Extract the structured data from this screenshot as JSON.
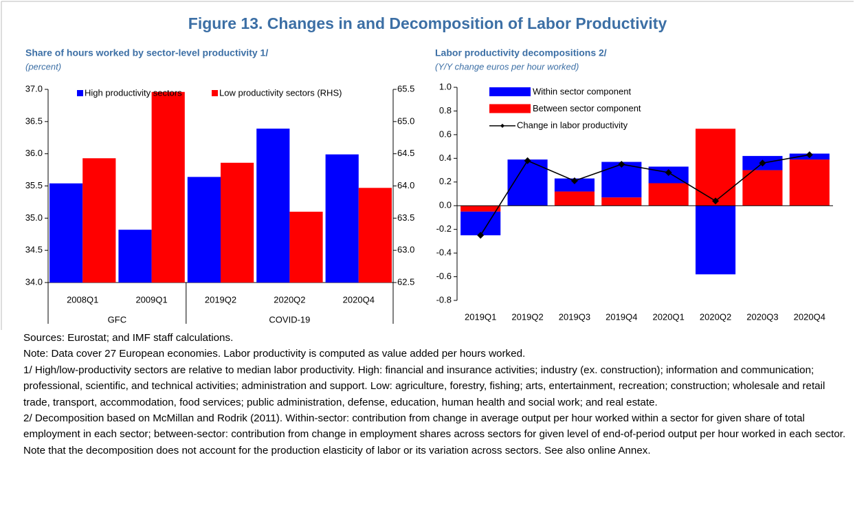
{
  "title": "Figure 13. Changes in and Decomposition of Labor Productivity",
  "chart_data": [
    {
      "type": "bar",
      "title": "Share of hours worked by sector-level productivity 1/",
      "subtitle": "(percent)",
      "categories": [
        "2008Q1",
        "2009Q1",
        "2019Q2",
        "2020Q2",
        "2020Q4"
      ],
      "groups": [
        {
          "label": "GFC",
          "size": 2
        },
        {
          "label": "COVID-19",
          "size": 3
        }
      ],
      "series": [
        {
          "name": "High productivity sectors",
          "color": "#0000ff",
          "values": [
            35.54,
            34.82,
            35.64,
            36.39,
            35.99
          ]
        },
        {
          "name": "Low productivity sectors (RHS)",
          "color": "#ff0000",
          "axis": "y2",
          "values": [
            64.43,
            65.46,
            64.36,
            63.6,
            63.97
          ]
        }
      ],
      "ylim": [
        34,
        37
      ],
      "yticks": [
        {
          "value": 34,
          "label": "34.0"
        },
        34.5,
        {
          "value": 35,
          "label": "35.0"
        },
        35.5,
        {
          "value": 36,
          "label": "36.0"
        },
        36.5,
        {
          "value": 37,
          "label": "37.0"
        }
      ],
      "y2lim": [
        62.5,
        65.5
      ],
      "y2ticks": [
        62.5,
        {
          "value": 63,
          "label": "63.0"
        },
        63.5,
        {
          "value": 64,
          "label": "64.0"
        },
        64.5,
        {
          "value": 65,
          "label": "65.0"
        },
        65.5
      ],
      "legend": "top"
    },
    {
      "type": "stacked_bar",
      "title": "Labor productivity decompositions 2/",
      "subtitle": "(Y/Y change euros per hour worked)",
      "categories": [
        "2019Q1",
        "2019Q2",
        "2019Q3",
        "2019Q4",
        "2020Q1",
        "2020Q2",
        "2020Q3",
        "2020Q4"
      ],
      "series": [
        {
          "name": "Within sector component",
          "color": "#0000ff",
          "values": [
            -0.2,
            0.39,
            0.11,
            0.3,
            0.14,
            -0.58,
            0.12,
            0.05
          ]
        },
        {
          "name": "Between sector component",
          "color": "#ff0000",
          "values": [
            -0.05,
            0.0,
            0.12,
            0.07,
            0.19,
            0.65,
            0.3,
            0.39
          ]
        },
        {
          "name": "Change in labor productivity",
          "type": "line",
          "marker": "diamond",
          "color": "#000000",
          "values": [
            -0.25,
            0.38,
            0.21,
            0.35,
            0.28,
            0.04,
            0.36,
            0.43
          ]
        }
      ],
      "ylim": [
        -0.8,
        1.0
      ],
      "yticks": [
        -0.8,
        -0.6,
        -0.4,
        -0.2,
        {
          "value": 0,
          "label": "0.0"
        },
        0.2,
        0.4,
        0.6,
        0.8,
        {
          "value": 1,
          "label": "1.0"
        }
      ],
      "legend": "top-left"
    }
  ],
  "notes": [
    "Sources: Eurostat; and IMF staff calculations.",
    "Note: Data cover 27 European economies. Labor productivity is computed as value added per hours worked.",
    "1/ High/low-productivity sectors are relative to median labor productivity. High: financial and insurance activities; industry (ex. construction); information and communication; professional, scientific, and technical activities; administration and support. Low: agriculture, forestry, fishing; arts, entertainment, recreation; construction; wholesale and retail trade, transport, accommodation, food services; public administration, defense, education, human health and social work; and real estate.",
    "2/ Decomposition based on McMillan and Rodrik (2011). Within-sector: contribution from change in average output per hour worked within a sector for given share of total employment in each sector; between-sector: contribution from change in employment shares across sectors for given level of end-of-period output per hour worked in each sector. Note that the decomposition does not account for the production elasticity of labor or its variation across sectors. See also online Annex."
  ]
}
